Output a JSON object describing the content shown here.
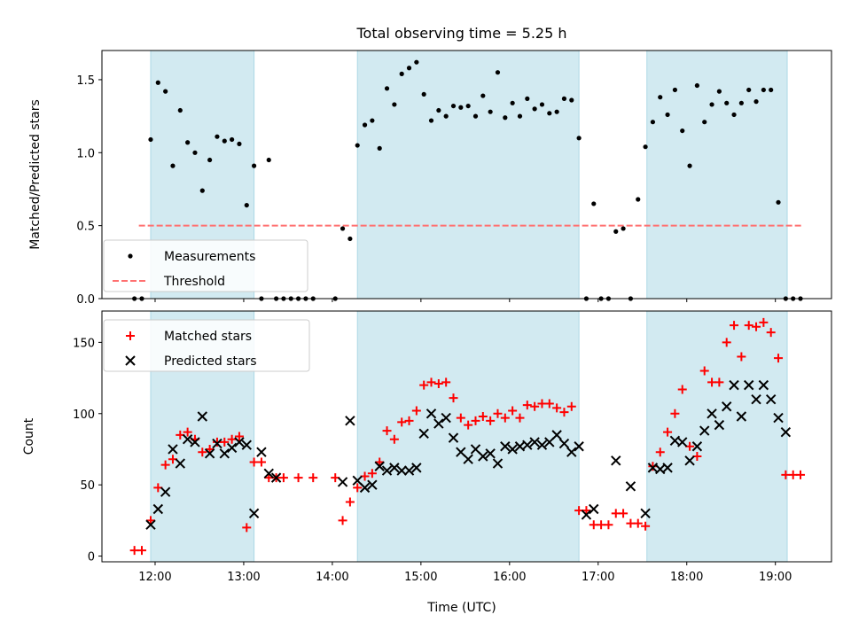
{
  "figure": {
    "title": "Total observing time = 5.25 h",
    "xlabel": "Time (UTC)"
  },
  "colors": {
    "shade": "#add8e6",
    "threshold": "#ff7070",
    "matched": "#ff0000",
    "predicted": "#000000",
    "points": "#000000"
  },
  "chart_data": [
    {
      "type": "scatter",
      "ylabel": "Matched/Predicted stars",
      "xlim": [
        "11:24",
        "19:38"
      ],
      "ylim": [
        0,
        1.7
      ],
      "yticks": [
        "0.0",
        "0.5",
        "1.0",
        "1.5"
      ],
      "xticks": [
        "12:00",
        "13:00",
        "14:00",
        "15:00",
        "16:00",
        "17:00",
        "18:00",
        "19:00"
      ],
      "shaded_intervals": [
        [
          "11:57",
          "13:07"
        ],
        [
          "14:17",
          "16:47"
        ],
        [
          "17:33",
          "19:08"
        ]
      ],
      "legend": {
        "position": "lower-left",
        "entries": [
          "Measurements",
          "Threshold"
        ]
      },
      "threshold": {
        "name": "Threshold",
        "value": 0.5,
        "x_range": [
          "11:49",
          "19:18"
        ],
        "style": "dashed"
      },
      "series": [
        {
          "name": "Measurements",
          "marker": "dot",
          "x": [
            "11:46",
            "11:51",
            "11:57",
            "12:02",
            "12:07",
            "12:12",
            "12:17",
            "12:22",
            "12:27",
            "12:32",
            "12:37",
            "12:42",
            "12:47",
            "12:52",
            "12:57",
            "13:02",
            "13:07",
            "13:12",
            "13:17",
            "13:22",
            "13:27",
            "13:32",
            "13:37",
            "13:42",
            "13:47",
            "14:02",
            "14:07",
            "14:12",
            "14:17",
            "14:22",
            "14:27",
            "14:32",
            "14:37",
            "14:42",
            "14:47",
            "14:52",
            "14:57",
            "15:02",
            "15:07",
            "15:12",
            "15:17",
            "15:22",
            "15:27",
            "15:32",
            "15:37",
            "15:42",
            "15:47",
            "15:52",
            "15:57",
            "16:02",
            "16:07",
            "16:12",
            "16:17",
            "16:22",
            "16:27",
            "16:32",
            "16:37",
            "16:42",
            "16:47",
            "16:52",
            "16:57",
            "17:02",
            "17:07",
            "17:12",
            "17:17",
            "17:22",
            "17:27",
            "17:32",
            "17:37",
            "17:42",
            "17:47",
            "17:52",
            "17:57",
            "18:02",
            "18:07",
            "18:12",
            "18:17",
            "18:22",
            "18:27",
            "18:32",
            "18:37",
            "18:42",
            "18:47",
            "18:52",
            "18:57",
            "19:02",
            "19:07",
            "19:12",
            "19:17"
          ],
          "y": [
            0,
            0,
            1.09,
            1.48,
            1.42,
            0.91,
            1.29,
            1.07,
            1.0,
            0.74,
            0.95,
            1.11,
            1.08,
            1.09,
            1.06,
            0.64,
            0.91,
            0,
            0.95,
            0,
            0,
            0,
            0,
            0,
            0,
            0,
            0.48,
            0.41,
            1.05,
            1.19,
            1.22,
            1.03,
            1.44,
            1.33,
            1.54,
            1.58,
            1.62,
            1.4,
            1.22,
            1.29,
            1.25,
            1.32,
            1.31,
            1.32,
            1.25,
            1.39,
            1.28,
            1.55,
            1.24,
            1.34,
            1.25,
            1.37,
            1.3,
            1.33,
            1.27,
            1.28,
            1.37,
            1.36,
            1.1,
            0,
            0.65,
            0,
            0,
            0.46,
            0.48,
            0,
            0.68,
            1.04,
            1.21,
            1.38,
            1.26,
            1.43,
            1.15,
            0.91,
            1.46,
            1.21,
            1.33,
            1.42,
            1.34,
            1.26,
            1.34,
            1.43,
            1.35,
            1.43,
            1.43,
            0.66,
            0,
            0,
            0
          ]
        }
      ]
    },
    {
      "type": "scatter",
      "ylabel": "Count",
      "xlim": [
        "11:24",
        "19:38"
      ],
      "ylim": [
        -4,
        172
      ],
      "yticks": [
        "0",
        "50",
        "100",
        "150"
      ],
      "xticks": [
        "12:00",
        "13:00",
        "14:00",
        "15:00",
        "16:00",
        "17:00",
        "18:00",
        "19:00"
      ],
      "shaded_intervals": [
        [
          "11:57",
          "13:07"
        ],
        [
          "14:17",
          "16:47"
        ],
        [
          "17:33",
          "19:08"
        ]
      ],
      "legend": {
        "position": "upper-left",
        "entries": [
          "Matched stars",
          "Predicted stars"
        ]
      },
      "series": [
        {
          "name": "Matched stars",
          "marker": "plus",
          "x": [
            "11:46",
            "11:51",
            "11:57",
            "12:02",
            "12:07",
            "12:12",
            "12:17",
            "12:22",
            "12:27",
            "12:32",
            "12:37",
            "12:42",
            "12:47",
            "12:52",
            "12:57",
            "13:02",
            "13:07",
            "13:12",
            "13:17",
            "13:22",
            "13:27",
            "13:37",
            "13:47",
            "14:02",
            "14:07",
            "14:12",
            "14:17",
            "14:22",
            "14:27",
            "14:32",
            "14:37",
            "14:42",
            "14:47",
            "14:52",
            "14:57",
            "15:02",
            "15:07",
            "15:12",
            "15:17",
            "15:22",
            "15:27",
            "15:32",
            "15:37",
            "15:42",
            "15:47",
            "15:52",
            "15:57",
            "16:02",
            "16:07",
            "16:12",
            "16:17",
            "16:22",
            "16:27",
            "16:32",
            "16:37",
            "16:42",
            "16:47",
            "16:52",
            "16:57",
            "17:02",
            "17:07",
            "17:12",
            "17:17",
            "17:22",
            "17:27",
            "17:32",
            "17:37",
            "17:42",
            "17:47",
            "17:52",
            "17:57",
            "18:02",
            "18:07",
            "18:12",
            "18:17",
            "18:22",
            "18:27",
            "18:32",
            "18:37",
            "18:42",
            "18:47",
            "18:52",
            "18:57",
            "19:02",
            "19:07",
            "19:12",
            "19:17"
          ],
          "y": [
            4,
            4,
            25,
            48,
            64,
            68,
            85,
            87,
            82,
            73,
            75,
            80,
            80,
            82,
            84,
            20,
            66,
            66,
            55,
            55,
            55,
            55,
            55,
            55,
            25,
            38,
            48,
            56,
            58,
            66,
            88,
            82,
            94,
            95,
            102,
            120,
            122,
            121,
            122,
            111,
            97,
            92,
            95,
            98,
            95,
            100,
            97,
            102,
            97,
            106,
            105,
            107,
            107,
            104,
            101,
            105,
            32,
            32,
            22,
            22,
            22,
            30,
            30,
            23,
            23,
            21,
            63,
            73,
            87,
            100,
            117,
            77,
            70,
            130,
            122,
            122,
            150,
            162,
            140,
            162,
            161,
            164,
            157,
            139,
            57,
            57,
            57
          ],
          "note": ""
        },
        {
          "name": "Predicted stars",
          "marker": "x",
          "x": [
            "11:57",
            "12:02",
            "12:07",
            "12:12",
            "12:17",
            "12:22",
            "12:27",
            "12:32",
            "12:37",
            "12:42",
            "12:47",
            "12:52",
            "12:57",
            "13:02",
            "13:07",
            "13:12",
            "13:17",
            "13:22",
            "14:07",
            "14:12",
            "14:17",
            "14:22",
            "14:27",
            "14:32",
            "14:37",
            "14:42",
            "14:47",
            "14:52",
            "14:57",
            "15:02",
            "15:07",
            "15:12",
            "15:17",
            "15:22",
            "15:27",
            "15:32",
            "15:37",
            "15:42",
            "15:47",
            "15:52",
            "15:57",
            "16:02",
            "16:07",
            "16:12",
            "16:17",
            "16:22",
            "16:27",
            "16:32",
            "16:37",
            "16:42",
            "16:47",
            "16:52",
            "16:57",
            "17:12",
            "17:22",
            "17:32",
            "17:37",
            "17:42",
            "17:47",
            "17:52",
            "17:57",
            "18:02",
            "18:07",
            "18:12",
            "18:17",
            "18:22",
            "18:27",
            "18:32",
            "18:37",
            "18:42",
            "18:47",
            "18:52",
            "18:57",
            "19:02",
            "19:07"
          ],
          "y": [
            22,
            33,
            45,
            75,
            65,
            82,
            80,
            98,
            72,
            79,
            72,
            76,
            80,
            78,
            30,
            73,
            58,
            55,
            52,
            95,
            53,
            48,
            50,
            63,
            60,
            62,
            60,
            60,
            62,
            86,
            100,
            93,
            97,
            83,
            73,
            68,
            75,
            70,
            72,
            65,
            77,
            75,
            77,
            78,
            80,
            78,
            80,
            85,
            79,
            73,
            77,
            29,
            33,
            67,
            49,
            30,
            62,
            61,
            62,
            81,
            80,
            67,
            77,
            88,
            100,
            92,
            105,
            120,
            98,
            120,
            110,
            120,
            110,
            97,
            87
          ]
        }
      ]
    }
  ]
}
